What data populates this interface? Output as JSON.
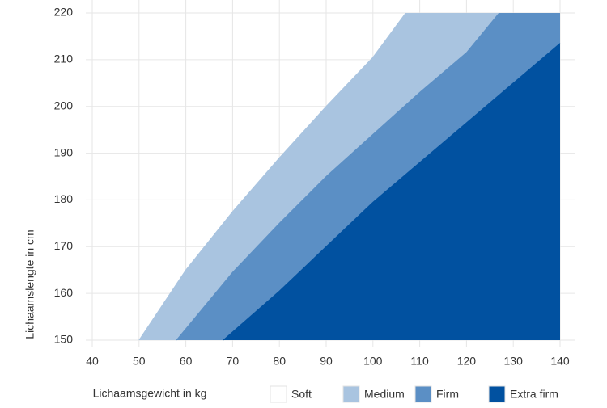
{
  "chart_data": {
    "type": "area",
    "x_label": "Lichaamsgewicht in kg",
    "y_label": "Lichaamslengte in cm",
    "xlim": [
      40,
      140
    ],
    "xticks": [
      40,
      50,
      60,
      70,
      80,
      90,
      100,
      110,
      120,
      130,
      140
    ],
    "ylim": [
      150,
      220
    ],
    "yticks": [
      150,
      160,
      170,
      180,
      190,
      200,
      210,
      220
    ],
    "grid": true,
    "legend": "bottom",
    "legend_entries": [
      {
        "name": "Soft",
        "color": "#ffffff"
      }
    ],
    "series": [
      {
        "name": "Medium",
        "color": "#a9c4e0",
        "x": [
          50,
          60,
          70,
          80,
          90,
          100,
          107
        ],
        "values": [
          150,
          165,
          177.5,
          189,
          200,
          210.5,
          220
        ]
      },
      {
        "name": "Firm",
        "color": "#5b8fc5",
        "x": [
          58,
          70,
          80,
          90,
          100,
          110,
          120,
          127
        ],
        "values": [
          150,
          164.5,
          175,
          185,
          194,
          203,
          211.5,
          220
        ]
      },
      {
        "name": "Extra firm",
        "color": "#0151a0",
        "x": [
          68,
          80,
          90,
          100,
          110,
          120,
          130,
          140
        ],
        "values": [
          150,
          160.5,
          170,
          179.5,
          188,
          196.5,
          205,
          213.5
        ]
      }
    ]
  }
}
